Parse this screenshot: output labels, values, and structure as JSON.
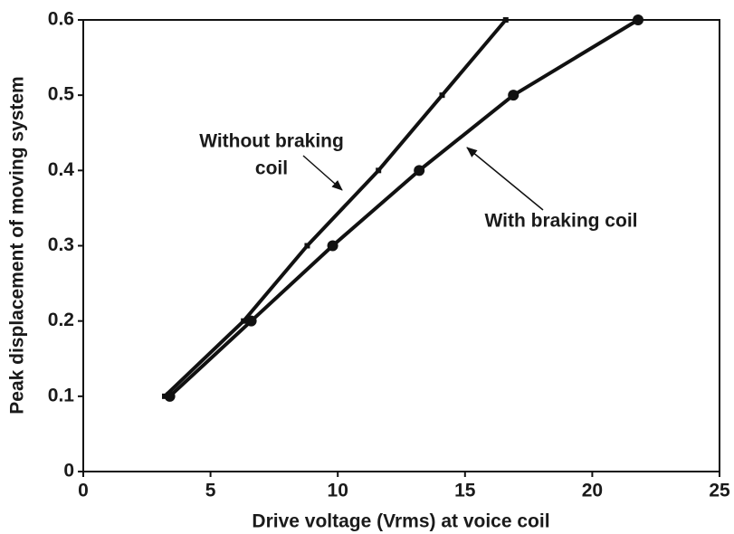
{
  "chart_data": {
    "type": "line",
    "x_label": "Drive voltage (Vrms) at voice coil",
    "y_label": "Peak displacement of moving system",
    "xlim": [
      0,
      25
    ],
    "xticks": [
      0,
      5,
      10,
      15,
      20,
      25
    ],
    "ylim": [
      0,
      0.6
    ],
    "yticks": [
      0,
      0.1,
      0.2,
      0.3,
      0.4,
      0.5,
      0.6
    ],
    "grid": false,
    "series": [
      {
        "name": "Without braking coil",
        "color": "#111111",
        "marker": "tick",
        "x": [
          3.2,
          6.3,
          8.8,
          11.6,
          14.1,
          16.6
        ],
        "values": [
          0.1,
          0.2,
          0.3,
          0.4,
          0.5,
          0.6
        ]
      },
      {
        "name": "With braking coil",
        "color": "#111111",
        "marker": "dot",
        "x": [
          3.4,
          6.6,
          9.8,
          13.2,
          16.9,
          21.8
        ],
        "values": [
          0.1,
          0.2,
          0.3,
          0.4,
          0.5,
          0.6
        ]
      }
    ],
    "annotations": [
      {
        "lines": [
          "Without braking",
          "coil"
        ]
      },
      {
        "lines": [
          "With braking coil"
        ]
      }
    ]
  }
}
